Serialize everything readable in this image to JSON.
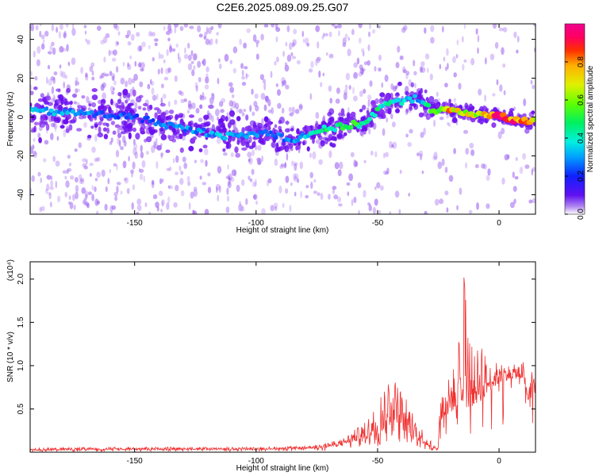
{
  "title": "C2E6.2025.089.09.25.G07",
  "colors": {
    "snr_line": "#f03030",
    "frame": "#000000",
    "spectrogram_purple": "#7a10f0",
    "spectrogram_peak": "#f0203c"
  },
  "chart_data": [
    {
      "type": "heatmap",
      "name": "spectrogram",
      "xlabel": "Height of straight line (km)",
      "ylabel": "Frequency (Hz)",
      "xlim": [
        -193,
        15
      ],
      "ylim": [
        -50,
        48
      ],
      "x_ticks": [
        "-150",
        "-100",
        "-50",
        "0"
      ],
      "y_ticks": [
        "40",
        "20",
        "0",
        "-20",
        "-40"
      ],
      "grid": false,
      "colorbar": {
        "label": "Normalized spectral amplitude",
        "range": [
          0,
          1
        ],
        "ticks": [
          "0.0",
          "0.2",
          "0.4",
          "0.6",
          "0.8"
        ]
      },
      "ridge": {
        "x": [
          -190,
          -170,
          -150,
          -130,
          -110,
          -95,
          -85,
          -75,
          -65,
          -55,
          -48,
          -40,
          -33,
          -28,
          -20,
          -10,
          0,
          10,
          15
        ],
        "freq": [
          3,
          2,
          0,
          -6,
          -10,
          -8,
          -12,
          -7,
          -5,
          -3,
          6,
          8,
          10,
          4,
          3,
          2,
          0,
          -2,
          -2
        ],
        "amplitude": [
          0.35,
          0.3,
          0.25,
          0.3,
          0.35,
          0.3,
          0.3,
          0.45,
          0.5,
          0.5,
          0.45,
          0.4,
          0.3,
          0.55,
          0.8,
          0.7,
          0.95,
          0.85,
          0.8
        ]
      }
    },
    {
      "type": "line",
      "name": "snr",
      "xlabel": "Height of straight line (km)",
      "ylabel": "SNR (10 * v/v)",
      "multiplier": "(x10⁴)",
      "xlim": [
        -193,
        15
      ],
      "ylim": [
        0,
        2.2
      ],
      "x_ticks": [
        "-150",
        "-100",
        "-50",
        "0"
      ],
      "y_ticks": [
        "0.5",
        "1.0",
        "1.5",
        "2.0"
      ],
      "grid": false,
      "envelope": {
        "x": [
          -193,
          -150,
          -120,
          -100,
          -80,
          -72,
          -65,
          -60,
          -55,
          -50,
          -45,
          -44,
          -40,
          -36,
          -30,
          -26,
          -24,
          -20,
          -17,
          -15,
          -13,
          -10,
          -7,
          -5,
          0,
          5,
          10,
          12,
          13,
          15
        ],
        "base": [
          0.02,
          0.03,
          0.03,
          0.03,
          0.04,
          0.05,
          0.08,
          0.12,
          0.15,
          0.2,
          0.3,
          0.4,
          0.28,
          0.18,
          0.08,
          0.03,
          0.35,
          0.45,
          0.55,
          0.6,
          0.5,
          0.55,
          0.6,
          0.68,
          0.8,
          0.85,
          0.85,
          0.6,
          0.75,
          0.7
        ],
        "peak": [
          0.05,
          0.06,
          0.06,
          0.06,
          0.07,
          0.1,
          0.15,
          0.25,
          0.35,
          0.6,
          1.0,
          0.9,
          0.75,
          0.5,
          0.2,
          0.08,
          0.7,
          0.9,
          1.1,
          2.22,
          1.5,
          1.1,
          1.4,
          1.0,
          1.05,
          1.0,
          1.05,
          0.6,
          1.0,
          0.9
        ]
      }
    }
  ]
}
